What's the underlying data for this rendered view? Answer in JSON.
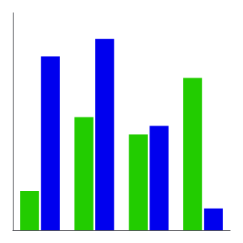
{
  "chart_data": {
    "type": "bar",
    "categories": [
      null,
      null,
      null,
      null
    ],
    "series": [
      {
        "color": "#22cc00",
        "values": [
          18,
          52,
          44,
          70
        ]
      },
      {
        "color": "#0000ee",
        "values": [
          80,
          88,
          48,
          10
        ]
      }
    ],
    "ylim": [
      0,
      100
    ],
    "grid": false,
    "tick_labels": false
  }
}
